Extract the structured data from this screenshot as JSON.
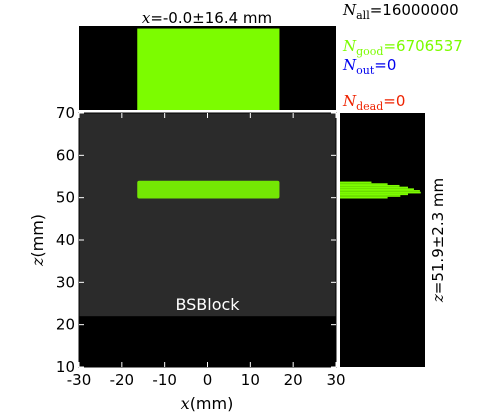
{
  "chart_data": {
    "type": "heatmap",
    "main": {
      "xlabel_var": "x",
      "xlabel_unit": "(mm)",
      "ylabel_var": "z",
      "ylabel_unit": "(mm)",
      "xlim": [
        -30,
        30
      ],
      "ylim": [
        10,
        70
      ],
      "xticks": [
        -30,
        -20,
        -10,
        0,
        10,
        20,
        30
      ],
      "yticks": [
        10,
        20,
        30,
        40,
        50,
        60,
        70
      ],
      "block": {
        "label": "BSBlock",
        "color": "#2b2b2b",
        "x_range": [
          -30,
          30
        ],
        "z_range": [
          22,
          70
        ]
      },
      "beam": {
        "color": "#7cfc00",
        "x_range": [
          -16.4,
          16.8
        ],
        "z_range": [
          49.8,
          54.0
        ]
      }
    },
    "top_histogram": {
      "label_var": "x",
      "label_text": "=-0.0±16.4 mm",
      "x_range": [
        -16.4,
        16.8
      ],
      "relative_height": 0.97,
      "color": "#7cfc00"
    },
    "right_histogram": {
      "label_var": "z",
      "label_text": "=51.9±2.3 mm",
      "color": "#7cfc00",
      "profile": [
        {
          "z": 49.8,
          "v": 0.56
        },
        {
          "z": 50.2,
          "v": 0.71
        },
        {
          "z": 50.6,
          "v": 0.8
        },
        {
          "z": 51.0,
          "v": 0.95
        },
        {
          "z": 51.4,
          "v": 0.94
        },
        {
          "z": 51.8,
          "v": 0.87
        },
        {
          "z": 52.2,
          "v": 0.8
        },
        {
          "z": 52.6,
          "v": 0.7
        },
        {
          "z": 53.0,
          "v": 0.56
        },
        {
          "z": 53.4,
          "v": 0.37
        }
      ]
    },
    "stats": [
      {
        "id": "all",
        "symbol": "N",
        "sub": "all",
        "text": "=16000000",
        "color": "#000000"
      },
      {
        "id": "good",
        "symbol": "N",
        "sub": "good",
        "text": "=6706537",
        "color": "#7cfc00"
      },
      {
        "id": "out",
        "symbol": "N",
        "sub": "out",
        "text": "=0",
        "color": "#0000ee"
      },
      {
        "id": "dead",
        "symbol": "N",
        "sub": "dead",
        "text": "=0",
        "color": "#ee2200"
      }
    ]
  }
}
